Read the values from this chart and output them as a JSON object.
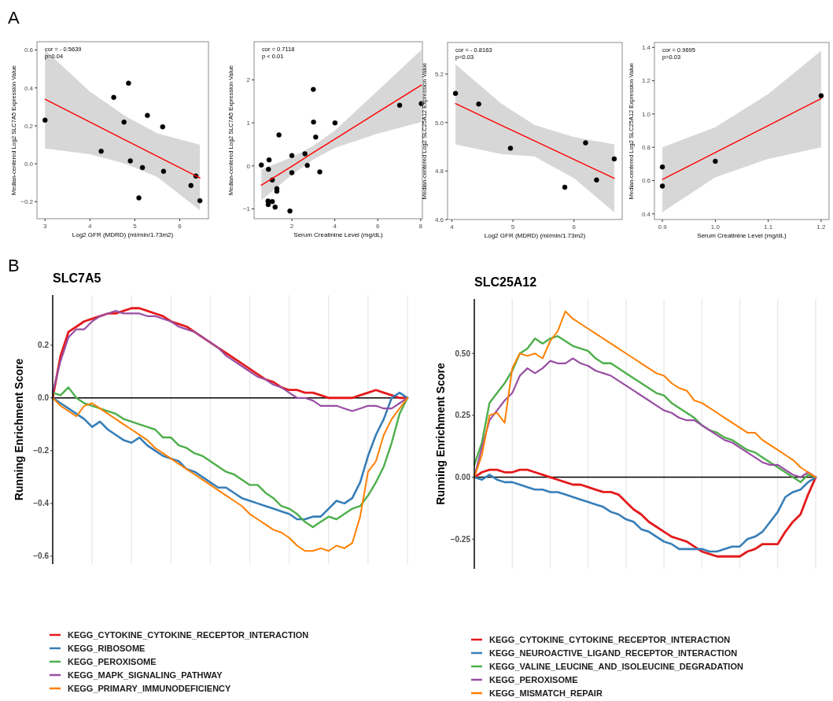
{
  "chart_data": [
    {
      "type": "scatter",
      "title": "A",
      "xlabel": "Log2 GFR (MDRD) (ml/min/1.73m2)",
      "ylabel": "Median-centered Log2 SLC7A5 Expression Value",
      "xlim": [
        2.82,
        6.64
      ],
      "ylim": [
        -0.29,
        0.644
      ],
      "xticks": [
        3,
        4,
        5,
        6
      ],
      "yticks": [
        {
          "value": -0.2,
          "label": "−0.2"
        },
        {
          "value": 0,
          "label": "0.0"
        },
        0.2,
        0.4,
        0.6
      ],
      "annotations": [
        "cor = - 0.5639",
        "p=0.04"
      ],
      "series": [
        {
          "type": "scatter",
          "color": "#000000",
          "x": [
            3.0,
            4.25,
            4.53,
            4.86,
            4.76,
            4.9,
            5.09,
            5.17,
            5.28,
            5.62,
            5.64,
            6.25,
            6.36,
            6.45
          ],
          "values": [
            0.23,
            0.066,
            0.35,
            0.425,
            0.22,
            0.015,
            -0.18,
            -0.02,
            0.255,
            0.195,
            -0.04,
            -0.115,
            -0.065,
            -0.195
          ]
        },
        {
          "type": "line",
          "color": "#ff0000",
          "x": [
            3,
            4,
            4.8,
            5.5,
            6.45
          ],
          "values": [
            0.34,
            0.22,
            0.124,
            0.04,
            -0.075
          ],
          "lower": [
            0.08,
            0.05,
            0.0,
            -0.07,
            -0.245
          ],
          "upper": [
            0.6,
            0.38,
            0.25,
            0.16,
            0.1
          ]
        }
      ]
    },
    {
      "type": "scatter",
      "xlabel": "Serum Creatinine Level (mg/dL)",
      "ylabel": "Median-centered Log2 SLC7A5  Expression Value",
      "xlim": [
        0.24,
        8.08
      ],
      "ylim": [
        -1.23,
        2.89
      ],
      "xticks": [
        2,
        4,
        6,
        8
      ],
      "yticks": [
        {
          "value": -1,
          "label": "−1"
        },
        0,
        1,
        2
      ],
      "annotations": [
        "cor = 0.7118",
        "p < 0.01"
      ],
      "series": [
        {
          "type": "scatter",
          "color": "#000000",
          "x": [
            0.58,
            0.91,
            0.94,
            0.89,
            0.9,
            1.09,
            1.09,
            1.22,
            1.3,
            1.3,
            1.4,
            1.91,
            2.0,
            2.0,
            2.61,
            2.72,
            3.0,
            3.01,
            3.11,
            3.3,
            4.01,
            7.02,
            8.03
          ],
          "values": [
            0.02,
            -0.08,
            0.14,
            -0.82,
            -0.9,
            -0.33,
            -0.83,
            -0.96,
            -0.53,
            -0.59,
            0.72,
            -1.05,
            0.24,
            -0.16,
            0.28,
            0.01,
            1.78,
            1.02,
            0.67,
            -0.14,
            1.0,
            1.41,
            1.45
          ]
        },
        {
          "type": "line",
          "color": "#ff0000",
          "x": [
            0.58,
            2,
            3,
            4,
            6,
            8.03
          ],
          "values": [
            -0.45,
            -0.01,
            0.31,
            0.62,
            1.25,
            1.88
          ],
          "lower": [
            -0.8,
            -0.21,
            0.15,
            0.42,
            0.75,
            1.02
          ],
          "upper": [
            -0.08,
            0.2,
            0.47,
            0.82,
            1.75,
            2.7
          ]
        }
      ]
    },
    {
      "type": "scatter",
      "xlabel": "Log2 GFR (MDRD) (ml/min/1.73m2)",
      "ylabel": "Median-centered Log2 SLC25A12  Expression Value",
      "xlim": [
        3.93,
        6.79
      ],
      "ylim": [
        4.6,
        5.33
      ],
      "xticks": [
        4,
        5,
        6
      ],
      "yticks": [
        4.6,
        4.8,
        {
          "value": 5,
          "label": "5.0"
        },
        5.2
      ],
      "annotations": [
        "cor = - 0.8163",
        "p=0.03"
      ],
      "series": [
        {
          "type": "scatter",
          "color": "#000000",
          "x": [
            4.06,
            4.44,
            4.96,
            5.85,
            6.19,
            6.37,
            6.66
          ],
          "values": [
            5.12,
            5.076,
            4.894,
            4.733,
            4.916,
            4.763,
            4.85
          ]
        },
        {
          "type": "line",
          "color": "#ff0000",
          "x": [
            4.06,
            4.8,
            5.35,
            6,
            6.66
          ],
          "values": [
            5.078,
            4.99,
            4.925,
            4.848,
            4.77
          ],
          "lower": [
            4.91,
            4.87,
            4.86,
            4.77,
            4.63
          ],
          "upper": [
            5.24,
            5.08,
            4.99,
            4.94,
            4.91
          ]
        }
      ]
    },
    {
      "type": "scatter",
      "xlabel": "Serum Creatinine Level (mg/dL)",
      "ylabel": "Median-centered Log2 SLC25A12  Expression Value",
      "xlim": [
        0.885,
        1.215
      ],
      "ylim": [
        0.366,
        1.43
      ],
      "xticks": [
        0.9,
        {
          "value": 1,
          "label": "1.0"
        },
        1.1,
        1.2
      ],
      "yticks": [
        0.4,
        0.6,
        0.8,
        {
          "value": 1,
          "label": "1.0"
        },
        1.2,
        1.4
      ],
      "annotations": [
        "cor = 0.9695",
        "p=0.03"
      ],
      "series": [
        {
          "type": "scatter",
          "color": "#000000",
          "x": [
            0.9,
            0.9,
            1.0,
            1.2
          ],
          "values": [
            0.682,
            0.567,
            0.716,
            1.11
          ]
        },
        {
          "type": "line",
          "color": "#ff0000",
          "x": [
            0.9,
            1.0,
            1.1,
            1.2
          ],
          "values": [
            0.607,
            0.769,
            0.931,
            1.093
          ],
          "lower": [
            0.41,
            0.62,
            0.73,
            0.8
          ],
          "upper": [
            0.8,
            0.92,
            1.12,
            1.38
          ]
        }
      ]
    },
    {
      "type": "line",
      "title": "SLC7A5",
      "ylabel": "Running Enrichment Score",
      "annotations": [
        "B"
      ],
      "ylim": [
        -0.63,
        0.39
      ],
      "yticks": [
        {
          "value": -0.6,
          "label": "−0.6"
        },
        {
          "value": -0.4,
          "label": "−0.4"
        },
        {
          "value": -0.2,
          "label": "−0.2"
        },
        {
          "value": 0,
          "label": "0.0"
        },
        0.2
      ],
      "grid": "x",
      "legend": "bottom",
      "tick_labels": "y",
      "ref_lines": [
        {
          "axis": "y",
          "value": 0,
          "color": "#000000"
        }
      ],
      "categories": [
        null,
        null,
        null,
        null,
        null,
        null,
        null,
        null,
        null,
        null,
        null,
        null,
        null,
        null,
        null,
        null,
        null,
        null,
        null,
        null,
        null,
        null,
        null,
        null,
        null,
        null,
        null,
        null,
        null,
        null,
        null,
        null,
        null,
        null,
        null,
        null,
        null,
        null,
        null,
        null,
        null,
        null,
        null,
        null,
        null,
        null
      ],
      "series": [
        {
          "name": "KEGG_CYTOKINE_CYTOKINE_RECEPTOR_INTERACTION",
          "color": "#e41a1c",
          "values": [
            0,
            0.16,
            0.25,
            0.27,
            0.29,
            0.3,
            0.31,
            0.32,
            0.32,
            0.33,
            0.34,
            0.34,
            0.33,
            0.32,
            0.31,
            0.29,
            0.28,
            0.27,
            0.25,
            0.23,
            0.21,
            0.19,
            0.17,
            0.15,
            0.13,
            0.11,
            0.09,
            0.07,
            0.06,
            0.04,
            0.03,
            0.03,
            0.02,
            0.02,
            0.01,
            0,
            0,
            0,
            0,
            0.01,
            0.02,
            0.03,
            0.02,
            0.01,
            0,
            0
          ]
        },
        {
          "name": "KEGG_RIBOSOME",
          "color": "#377eb8",
          "values": [
            0,
            -0.02,
            -0.04,
            -0.06,
            -0.08,
            -0.11,
            -0.09,
            -0.12,
            -0.14,
            -0.16,
            -0.17,
            -0.15,
            -0.18,
            -0.2,
            -0.22,
            -0.23,
            -0.24,
            -0.27,
            -0.28,
            -0.3,
            -0.32,
            -0.34,
            -0.34,
            -0.36,
            -0.38,
            -0.39,
            -0.4,
            -0.41,
            -0.42,
            -0.43,
            -0.44,
            -0.46,
            -0.46,
            -0.45,
            -0.45,
            -0.42,
            -0.39,
            -0.4,
            -0.38,
            -0.32,
            -0.22,
            -0.14,
            -0.08,
            0,
            0.02,
            0
          ]
        },
        {
          "name": "KEGG_PEROXISOME",
          "color": "#4daf4a",
          "values": [
            0.02,
            0.01,
            0.04,
            0,
            -0.02,
            -0.03,
            -0.04,
            -0.05,
            -0.06,
            -0.08,
            -0.09,
            -0.1,
            -0.11,
            -0.12,
            -0.15,
            -0.15,
            -0.18,
            -0.19,
            -0.21,
            -0.22,
            -0.24,
            -0.26,
            -0.28,
            -0.29,
            -0.31,
            -0.33,
            -0.33,
            -0.36,
            -0.38,
            -0.41,
            -0.42,
            -0.44,
            -0.47,
            -0.49,
            -0.47,
            -0.45,
            -0.46,
            -0.44,
            -0.42,
            -0.41,
            -0.37,
            -0.32,
            -0.26,
            -0.17,
            -0.06,
            0
          ]
        },
        {
          "name": "KEGG_MAPK_SIGNALING_PATHWAY",
          "color": "#984ea3",
          "values": [
            0.02,
            0.14,
            0.23,
            0.26,
            0.26,
            0.29,
            0.31,
            0.32,
            0.33,
            0.32,
            0.32,
            0.32,
            0.31,
            0.31,
            0.3,
            0.29,
            0.27,
            0.26,
            0.25,
            0.23,
            0.21,
            0.19,
            0.16,
            0.14,
            0.12,
            0.1,
            0.08,
            0.07,
            0.05,
            0.04,
            0.02,
            0,
            0,
            -0.01,
            -0.03,
            -0.03,
            -0.03,
            -0.04,
            -0.05,
            -0.04,
            -0.03,
            -0.03,
            -0.04,
            -0.04,
            -0.02,
            0
          ]
        },
        {
          "name": "KEGG_PRIMARY_IMMUNODEFICIENCY",
          "color": "#ff7f00",
          "values": [
            0,
            -0.03,
            -0.05,
            -0.07,
            -0.03,
            -0.02,
            -0.04,
            -0.06,
            -0.08,
            -0.1,
            -0.12,
            -0.14,
            -0.16,
            -0.19,
            -0.21,
            -0.23,
            -0.25,
            -0.27,
            -0.29,
            -0.31,
            -0.33,
            -0.35,
            -0.37,
            -0.39,
            -0.41,
            -0.44,
            -0.46,
            -0.48,
            -0.5,
            -0.51,
            -0.53,
            -0.56,
            -0.58,
            -0.58,
            -0.57,
            -0.58,
            -0.56,
            -0.57,
            -0.55,
            -0.45,
            -0.28,
            -0.24,
            -0.14,
            -0.08,
            -0.04,
            0
          ]
        }
      ]
    },
    {
      "type": "line",
      "title": "SLC25A12",
      "ylabel": "Running Enrichment Score",
      "ylim": [
        -0.37,
        0.72
      ],
      "yticks": [
        {
          "value": -0.25,
          "label": "−0.25"
        },
        {
          "value": 0,
          "label": "0.00"
        },
        0.25,
        {
          "value": 0.5,
          "label": "0.50"
        }
      ],
      "grid": "x",
      "legend": "bottom",
      "tick_labels": "y",
      "ref_lines": [
        {
          "axis": "y",
          "value": 0,
          "color": "#000000"
        }
      ],
      "categories": [
        null,
        null,
        null,
        null,
        null,
        null,
        null,
        null,
        null,
        null,
        null,
        null,
        null,
        null,
        null,
        null,
        null,
        null,
        null,
        null,
        null,
        null,
        null,
        null,
        null,
        null,
        null,
        null,
        null,
        null,
        null,
        null,
        null,
        null,
        null,
        null,
        null,
        null,
        null,
        null,
        null,
        null,
        null,
        null,
        null,
        null
      ],
      "series": [
        {
          "name": "KEGG_CYTOKINE_CYTOKINE_RECEPTOR_INTERACTION",
          "color": "#e41a1c",
          "values": [
            0,
            0.02,
            0.03,
            0.03,
            0.02,
            0.02,
            0.03,
            0.03,
            0.02,
            0.01,
            0,
            -0.01,
            -0.02,
            -0.03,
            -0.03,
            -0.04,
            -0.05,
            -0.06,
            -0.06,
            -0.07,
            -0.1,
            -0.13,
            -0.15,
            -0.18,
            -0.2,
            -0.22,
            -0.24,
            -0.25,
            -0.26,
            -0.28,
            -0.3,
            -0.31,
            -0.32,
            -0.32,
            -0.32,
            -0.32,
            -0.3,
            -0.29,
            -0.27,
            -0.27,
            -0.27,
            -0.22,
            -0.18,
            -0.15,
            -0.07,
            0
          ]
        },
        {
          "name": "KEGG_NEUROACTIVE_LIGAND_RECEPTOR_INTERACTION",
          "color": "#377eb8",
          "values": [
            0,
            -0.01,
            0.01,
            -0.01,
            -0.02,
            -0.02,
            -0.03,
            -0.04,
            -0.05,
            -0.05,
            -0.06,
            -0.06,
            -0.07,
            -0.08,
            -0.09,
            -0.1,
            -0.11,
            -0.12,
            -0.14,
            -0.15,
            -0.17,
            -0.18,
            -0.21,
            -0.22,
            -0.24,
            -0.26,
            -0.27,
            -0.29,
            -0.29,
            -0.29,
            -0.29,
            -0.3,
            -0.3,
            -0.29,
            -0.28,
            -0.28,
            -0.25,
            -0.24,
            -0.22,
            -0.18,
            -0.14,
            -0.08,
            -0.06,
            -0.05,
            -0.02,
            0
          ]
        },
        {
          "name": "KEGG_VALINE_LEUCINE_AND_ISOLEUCINE_DEGRADATION",
          "color": "#4daf4a",
          "values": [
            0.05,
            0.14,
            0.3,
            0.34,
            0.38,
            0.43,
            0.5,
            0.52,
            0.56,
            0.54,
            0.56,
            0.57,
            0.55,
            0.53,
            0.52,
            0.51,
            0.48,
            0.46,
            0.46,
            0.44,
            0.42,
            0.4,
            0.38,
            0.36,
            0.34,
            0.33,
            0.3,
            0.28,
            0.26,
            0.24,
            0.21,
            0.19,
            0.18,
            0.16,
            0.15,
            0.13,
            0.11,
            0.1,
            0.08,
            0.06,
            0.04,
            0.02,
            0,
            -0.02,
            0.01,
            0
          ]
        },
        {
          "name": "KEGG_PEROXISOME",
          "color": "#984ea3",
          "values": [
            0,
            0.12,
            0.23,
            0.27,
            0.31,
            0.34,
            0.41,
            0.44,
            0.42,
            0.44,
            0.47,
            0.46,
            0.46,
            0.48,
            0.46,
            0.45,
            0.43,
            0.42,
            0.41,
            0.39,
            0.37,
            0.35,
            0.33,
            0.31,
            0.29,
            0.27,
            0.26,
            0.24,
            0.23,
            0.23,
            0.21,
            0.19,
            0.17,
            0.15,
            0.14,
            0.12,
            0.1,
            0.08,
            0.06,
            0.05,
            0.05,
            0.03,
            0.01,
            0,
            0.02,
            0
          ]
        },
        {
          "name": "KEGG_MISMATCH_REPAIR",
          "color": "#ff7f00",
          "values": [
            0,
            0.09,
            0.25,
            0.26,
            0.22,
            0.44,
            0.5,
            0.49,
            0.5,
            0.48,
            0.55,
            0.59,
            0.67,
            0.64,
            0.62,
            0.6,
            0.58,
            0.56,
            0.54,
            0.52,
            0.5,
            0.48,
            0.46,
            0.44,
            0.42,
            0.41,
            0.38,
            0.36,
            0.35,
            0.31,
            0.3,
            0.28,
            0.26,
            0.24,
            0.22,
            0.2,
            0.18,
            0.18,
            0.15,
            0.13,
            0.11,
            0.09,
            0.07,
            0.04,
            0.02,
            0
          ]
        }
      ]
    }
  ]
}
